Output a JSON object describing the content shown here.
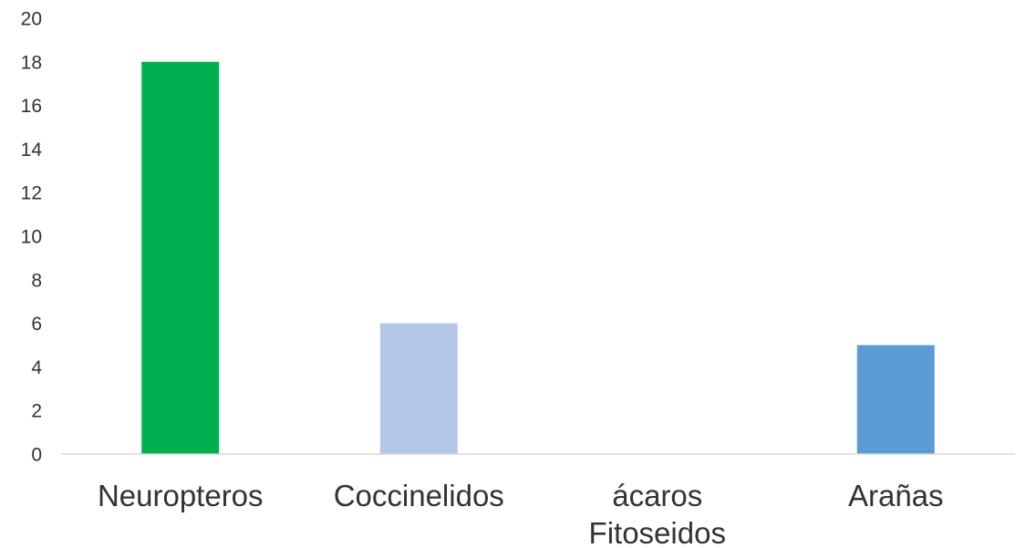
{
  "chart_data": {
    "type": "bar",
    "categories": [
      [
        "Neuropteros"
      ],
      [
        "Coccinelidos"
      ],
      [
        "ácaros",
        "Fitoseidos"
      ],
      [
        "Arañas"
      ]
    ],
    "values": [
      18,
      6,
      0,
      5
    ],
    "colors": [
      "#00b050",
      "#b4c7e7",
      "#a5a5a5",
      "#5b9bd5"
    ],
    "ylim": [
      0,
      20
    ],
    "yticks": [
      0,
      2,
      4,
      6,
      8,
      10,
      12,
      14,
      16,
      18,
      20
    ],
    "grid": false,
    "axis_color": "#d9d9d9",
    "title": "",
    "xlabel": "",
    "ylabel": ""
  }
}
